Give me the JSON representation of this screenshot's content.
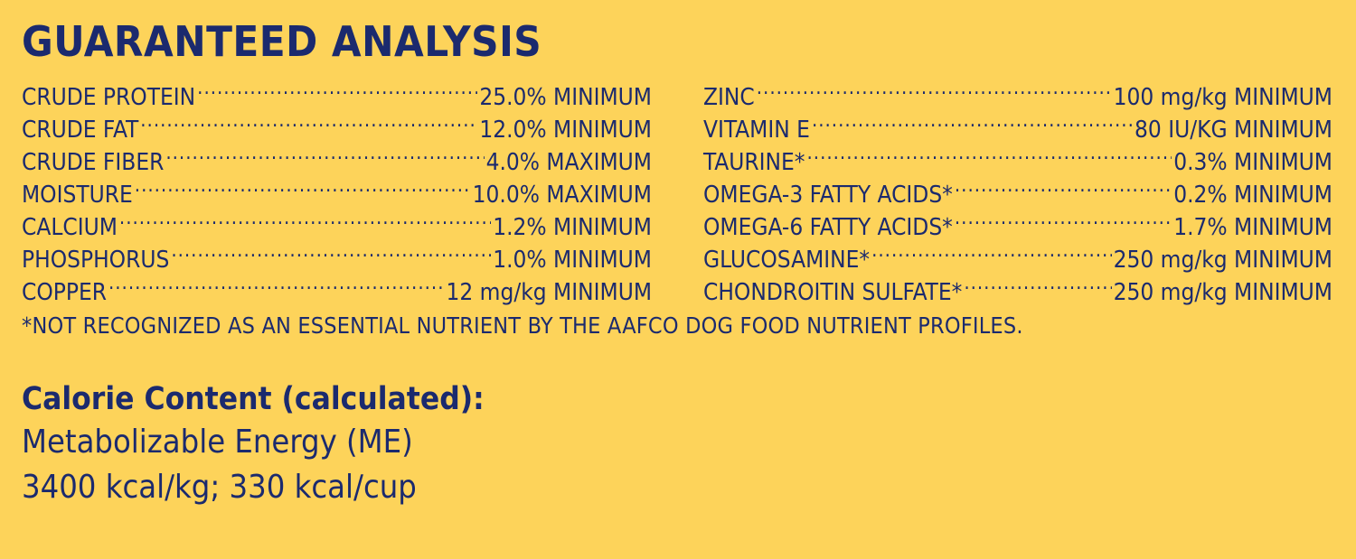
{
  "title": "GUARANTEED ANALYSIS",
  "left_column": [
    {
      "name": "CRUDE PROTEIN",
      "value": "25.0% MINIMUM"
    },
    {
      "name": "CRUDE FAT",
      "value": "12.0% MINIMUM"
    },
    {
      "name": "CRUDE FIBER",
      "value": "4.0% MAXIMUM"
    },
    {
      "name": "MOISTURE",
      "value": "10.0% MAXIMUM"
    },
    {
      "name": "CALCIUM",
      "value": "1.2% MINIMUM"
    },
    {
      "name": "PHOSPHORUS",
      "value": "1.0% MINIMUM"
    },
    {
      "name": "COPPER",
      "value": "12 mg/kg MINIMUM"
    }
  ],
  "right_column": [
    {
      "name": "ZINC",
      "value": "100 mg/kg MINIMUM"
    },
    {
      "name": "VITAMIN E",
      "value": "80 IU/KG MINIMUM"
    },
    {
      "name": "TAURINE*",
      "value": "0.3% MINIMUM"
    },
    {
      "name": "OMEGA-3 FATTY ACIDS*",
      "value": "0.2% MINIMUM"
    },
    {
      "name": "OMEGA-6 FATTY ACIDS*",
      "value": "1.7% MINIMUM"
    },
    {
      "name": "GLUCOSAMINE*",
      "value": "250 mg/kg MINIMUM"
    },
    {
      "name": "CHONDROITIN SULFATE*",
      "value": "250 mg/kg MINIMUM"
    }
  ],
  "footnote": "*NOT RECOGNIZED AS AN ESSENTIAL NUTRIENT BY THE AAFCO DOG FOOD NUTRIENT PROFILES.",
  "calorie": {
    "heading": "Calorie Content (calculated):",
    "line1": "Metabolizable Energy (ME)",
    "line2": "3400 kcal/kg; 330 kcal/cup"
  },
  "colors": {
    "background": "#FDD35A",
    "text": "#1B2A6E"
  }
}
